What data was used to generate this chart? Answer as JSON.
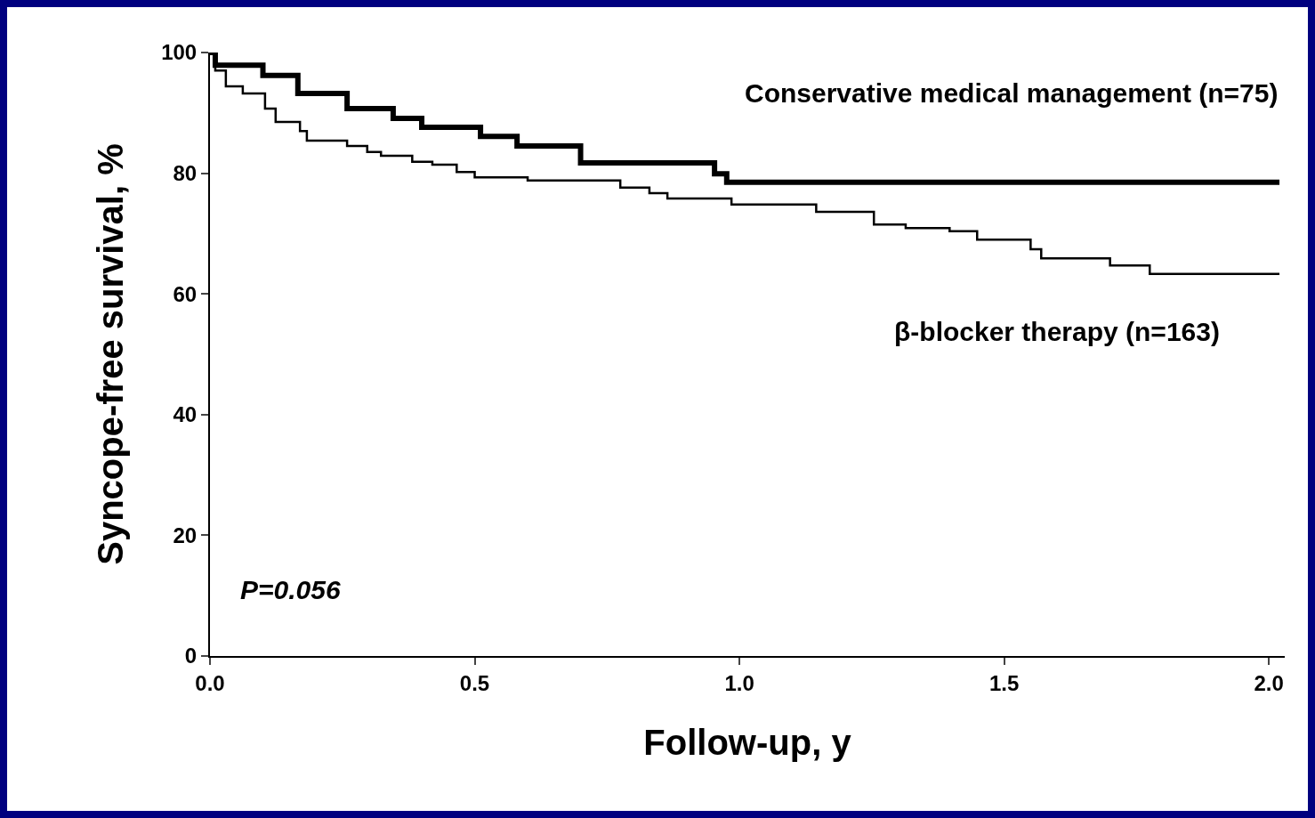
{
  "chart_data": {
    "type": "step",
    "xlabel": "Follow-up, y",
    "ylabel": "Syncope-free survival, %",
    "xlim": [
      0,
      2.03
    ],
    "ylim": [
      0,
      100
    ],
    "xticks": [
      {
        "value": 0,
        "label": "0.0"
      },
      0.5,
      {
        "value": 1,
        "label": "1.0"
      },
      1.5,
      {
        "value": 2,
        "label": "2.0"
      }
    ],
    "yticks": [
      0,
      20,
      40,
      60,
      80,
      100
    ],
    "grid": false,
    "legend": false,
    "marker": "none",
    "line_style": "solid",
    "series": [
      {
        "name": "Conservative medical management (n=75)",
        "color": "#000000",
        "x": [
          0,
          0.01,
          0.1,
          0.166,
          0.259,
          0.346,
          0.4,
          0.511,
          0.58,
          0.7,
          0.953,
          0.976,
          2.02
        ],
        "values": [
          100,
          97.9,
          96.2,
          93.2,
          90.7,
          89.1,
          87.6,
          86.1,
          84.5,
          81.7,
          79.9,
          78.5,
          78.5
        ]
      },
      {
        "name": "β-blocker therapy (n=163)",
        "color": "#000000",
        "x": [
          0,
          0.01,
          0.03,
          0.062,
          0.104,
          0.124,
          0.17,
          0.183,
          0.259,
          0.297,
          0.323,
          0.382,
          0.42,
          0.466,
          0.5,
          0.6,
          0.775,
          0.83,
          0.864,
          0.985,
          1.145,
          1.254,
          1.314,
          1.397,
          1.449,
          1.55,
          1.57,
          1.7,
          1.775,
          2.02
        ],
        "values": [
          100,
          97,
          94.4,
          93.2,
          90.7,
          88.5,
          87,
          85.4,
          84.5,
          83.5,
          82.9,
          81.9,
          81.4,
          80.2,
          79.3,
          78.8,
          77.6,
          76.7,
          75.8,
          74.8,
          73.6,
          71.5,
          70.9,
          70.4,
          69,
          67.4,
          65.9,
          64.7,
          63.3,
          63.3
        ]
      }
    ],
    "annotations": [
      "P=0.056"
    ]
  }
}
